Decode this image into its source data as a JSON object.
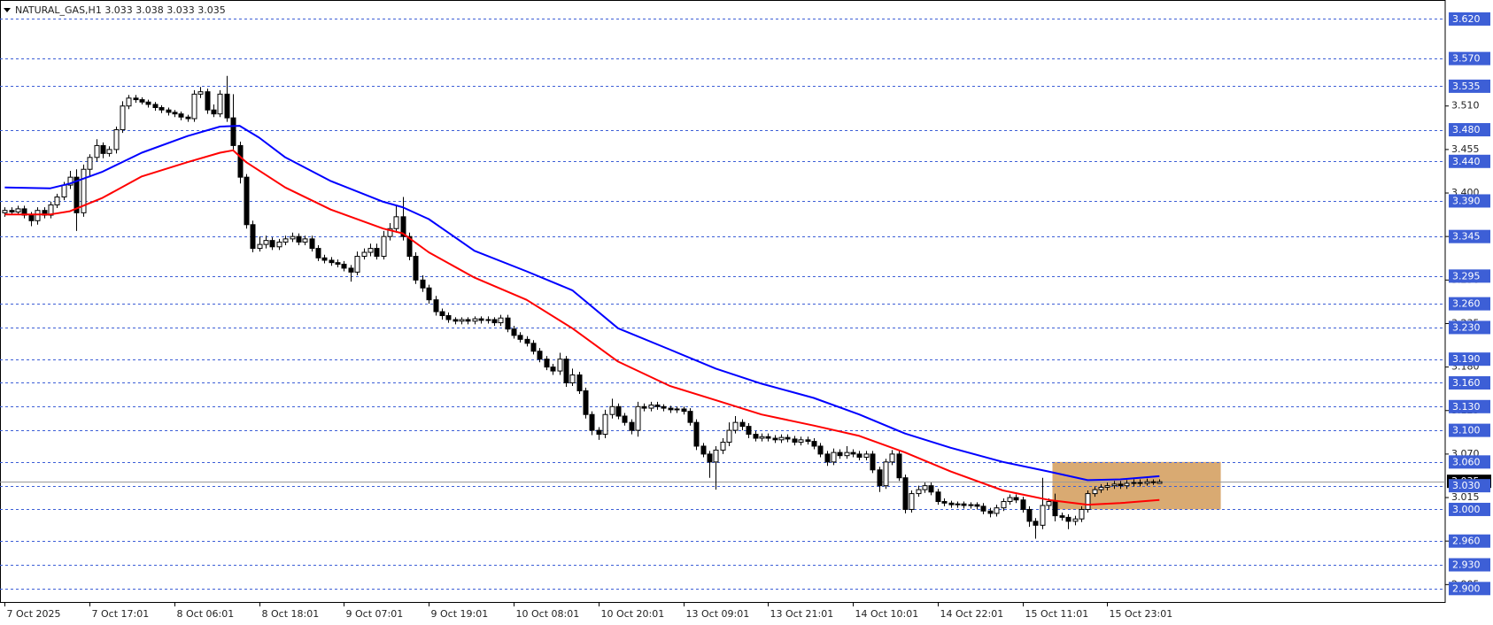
{
  "chart_data": {
    "type": "candlestick",
    "title": "NATURAL_GAS,H1  3.033 3.038 3.033 3.035",
    "open": [
      3.375,
      3.378,
      3.376,
      3.38,
      3.372,
      3.365,
      3.378,
      3.372,
      3.385,
      3.395,
      3.41,
      3.42,
      3.375,
      3.43,
      3.445,
      3.46,
      3.45,
      3.455,
      3.48,
      3.51,
      3.52,
      3.518,
      3.515,
      3.512,
      3.508,
      3.505,
      3.502,
      3.5,
      3.496,
      3.494,
      3.525,
      3.528,
      3.505,
      3.5,
      3.525,
      3.495,
      3.46,
      3.42,
      3.36,
      3.33,
      3.335,
      3.34,
      3.332,
      3.338,
      3.342,
      3.345,
      3.338,
      3.342,
      3.33,
      3.318,
      3.315,
      3.312,
      3.31,
      3.305,
      3.3,
      3.32,
      3.325,
      3.33,
      3.32,
      3.345,
      3.355,
      3.37,
      3.345,
      3.32,
      3.29,
      3.28,
      3.265,
      3.25,
      3.245,
      3.24,
      3.238,
      3.24,
      3.238,
      3.241,
      3.239,
      3.24,
      3.236,
      3.242,
      3.228,
      3.22,
      3.215,
      3.21,
      3.2,
      3.19,
      3.18,
      3.175,
      3.19,
      3.16,
      3.17,
      3.15,
      3.12,
      3.1,
      3.095,
      3.12,
      3.13,
      3.118,
      3.11,
      3.1,
      3.13,
      3.128,
      3.132,
      3.13,
      3.128,
      3.126,
      3.127,
      3.124,
      3.11,
      3.08,
      3.07,
      3.06,
      3.075,
      3.085,
      3.1,
      3.11,
      3.105,
      3.095,
      3.09,
      3.092,
      3.09,
      3.088,
      3.091,
      3.089,
      3.085,
      3.088,
      3.086,
      3.08,
      3.07,
      3.06,
      3.072,
      3.068,
      3.072,
      3.07,
      3.066,
      3.07,
      3.05,
      3.03,
      3.06,
      3.07,
      3.04,
      3.0,
      3.02,
      3.025,
      3.03,
      3.022,
      3.01,
      3.008,
      3.006,
      3.007,
      3.005,
      3.006,
      3.004,
      2.998,
      2.995,
      3.002,
      3.01,
      3.015,
      3.012,
      3.0,
      2.985,
      2.98,
      3.005,
      3.01,
      2.992,
      2.99,
      2.985,
      2.988,
      3.0,
      3.02,
      3.025,
      3.028,
      3.03,
      3.032,
      3.03,
      3.033,
      3.034,
      3.033,
      3.035,
      3.033
    ],
    "high": [
      3.382,
      3.382,
      3.384,
      3.384,
      3.376,
      3.382,
      3.382,
      3.389,
      3.399,
      3.414,
      3.428,
      3.43,
      3.436,
      3.449,
      3.468,
      3.464,
      3.459,
      3.484,
      3.516,
      3.524,
      3.524,
      3.521,
      3.518,
      3.515,
      3.511,
      3.508,
      3.505,
      3.503,
      3.499,
      3.53,
      3.534,
      3.532,
      3.512,
      3.53,
      3.548,
      3.525,
      3.465,
      3.424,
      3.365,
      3.345,
      3.346,
      3.344,
      3.342,
      3.346,
      3.35,
      3.349,
      3.346,
      3.346,
      3.334,
      3.322,
      3.319,
      3.316,
      3.314,
      3.309,
      3.326,
      3.33,
      3.336,
      3.336,
      3.352,
      3.362,
      3.385,
      3.395,
      3.35,
      3.325,
      3.296,
      3.284,
      3.27,
      3.254,
      3.249,
      3.243,
      3.243,
      3.243,
      3.244,
      3.244,
      3.244,
      3.243,
      3.246,
      3.246,
      3.232,
      3.224,
      3.219,
      3.214,
      3.204,
      3.194,
      3.184,
      3.198,
      3.194,
      3.178,
      3.174,
      3.154,
      3.124,
      3.104,
      3.126,
      3.14,
      3.134,
      3.122,
      3.114,
      3.136,
      3.134,
      3.136,
      3.136,
      3.133,
      3.131,
      3.13,
      3.13,
      3.128,
      3.114,
      3.084,
      3.074,
      3.08,
      3.09,
      3.11,
      3.118,
      3.114,
      3.109,
      3.099,
      3.096,
      3.096,
      3.094,
      3.095,
      3.095,
      3.093,
      3.092,
      3.092,
      3.09,
      3.084,
      3.074,
      3.077,
      3.076,
      3.08,
      3.076,
      3.074,
      3.074,
      3.074,
      3.054,
      3.064,
      3.075,
      3.074,
      3.044,
      3.024,
      3.03,
      3.034,
      3.034,
      3.026,
      3.014,
      3.011,
      3.01,
      3.01,
      3.009,
      3.009,
      3.008,
      3.002,
      3.006,
      3.014,
      3.019,
      3.019,
      3.016,
      3.004,
      2.989,
      3.04,
      3.014,
      3.02,
      2.996,
      2.994,
      2.992,
      3.004,
      3.024,
      3.029,
      3.032,
      3.034,
      3.036,
      3.036,
      3.037,
      3.038,
      3.038,
      3.039,
      3.038,
      3.038
    ],
    "low": [
      3.37,
      3.372,
      3.372,
      3.368,
      3.358,
      3.36,
      3.368,
      3.368,
      3.381,
      3.391,
      3.405,
      3.352,
      3.37,
      3.42,
      3.44,
      3.444,
      3.446,
      3.45,
      3.476,
      3.506,
      3.514,
      3.512,
      3.508,
      3.504,
      3.501,
      3.498,
      3.496,
      3.492,
      3.49,
      3.49,
      3.52,
      3.5,
      3.496,
      3.496,
      3.49,
      3.455,
      3.412,
      3.355,
      3.325,
      3.326,
      3.33,
      3.328,
      3.328,
      3.334,
      3.338,
      3.334,
      3.334,
      3.326,
      3.314,
      3.311,
      3.308,
      3.306,
      3.301,
      3.288,
      3.296,
      3.316,
      3.32,
      3.316,
      3.316,
      3.34,
      3.35,
      3.34,
      3.315,
      3.285,
      3.275,
      3.26,
      3.245,
      3.24,
      3.236,
      3.234,
      3.234,
      3.234,
      3.234,
      3.235,
      3.235,
      3.232,
      3.232,
      3.224,
      3.216,
      3.211,
      3.206,
      3.196,
      3.186,
      3.176,
      3.17,
      3.17,
      3.155,
      3.156,
      3.146,
      3.115,
      3.094,
      3.088,
      3.09,
      3.115,
      3.114,
      3.106,
      3.095,
      3.092,
      3.124,
      3.124,
      3.126,
      3.124,
      3.122,
      3.122,
      3.12,
      3.106,
      3.075,
      3.066,
      3.04,
      3.025,
      3.07,
      3.08,
      3.096,
      3.1,
      3.09,
      3.086,
      3.086,
      3.086,
      3.084,
      3.084,
      3.085,
      3.081,
      3.081,
      3.082,
      3.076,
      3.066,
      3.055,
      3.056,
      3.064,
      3.064,
      3.066,
      3.062,
      3.062,
      3.046,
      3.022,
      3.026,
      3.056,
      3.036,
      2.995,
      2.996,
      3.016,
      3.021,
      3.018,
      3.006,
      3.004,
      3.002,
      3.002,
      3.001,
      3.001,
      3.0,
      2.994,
      2.99,
      2.991,
      2.998,
      3.006,
      3.008,
      2.996,
      2.978,
      2.963,
      2.975,
      3.0,
      2.985,
      2.986,
      2.975,
      2.98,
      2.984,
      2.996,
      3.016,
      3.021,
      3.024,
      3.026,
      3.026,
      3.026,
      3.029,
      3.029,
      3.03,
      3.031,
      3.033
    ],
    "close": [
      3.378,
      3.376,
      3.38,
      3.372,
      3.365,
      3.378,
      3.372,
      3.385,
      3.395,
      3.41,
      3.42,
      3.375,
      3.43,
      3.445,
      3.46,
      3.45,
      3.455,
      3.48,
      3.51,
      3.52,
      3.518,
      3.515,
      3.512,
      3.508,
      3.505,
      3.502,
      3.5,
      3.496,
      3.494,
      3.525,
      3.528,
      3.505,
      3.5,
      3.525,
      3.495,
      3.46,
      3.42,
      3.36,
      3.33,
      3.335,
      3.34,
      3.332,
      3.338,
      3.342,
      3.345,
      3.338,
      3.342,
      3.33,
      3.318,
      3.315,
      3.312,
      3.31,
      3.305,
      3.3,
      3.32,
      3.325,
      3.33,
      3.32,
      3.345,
      3.355,
      3.37,
      3.345,
      3.32,
      3.29,
      3.28,
      3.265,
      3.25,
      3.245,
      3.24,
      3.238,
      3.24,
      3.238,
      3.241,
      3.239,
      3.24,
      3.236,
      3.242,
      3.228,
      3.22,
      3.215,
      3.21,
      3.2,
      3.19,
      3.18,
      3.175,
      3.19,
      3.16,
      3.17,
      3.15,
      3.12,
      3.1,
      3.095,
      3.12,
      3.13,
      3.118,
      3.11,
      3.1,
      3.13,
      3.128,
      3.132,
      3.13,
      3.128,
      3.126,
      3.127,
      3.124,
      3.11,
      3.08,
      3.07,
      3.06,
      3.075,
      3.085,
      3.1,
      3.11,
      3.105,
      3.095,
      3.09,
      3.092,
      3.09,
      3.088,
      3.091,
      3.089,
      3.085,
      3.088,
      3.086,
      3.08,
      3.07,
      3.06,
      3.072,
      3.068,
      3.072,
      3.07,
      3.066,
      3.07,
      3.05,
      3.03,
      3.06,
      3.07,
      3.04,
      3.0,
      3.02,
      3.025,
      3.03,
      3.022,
      3.01,
      3.008,
      3.006,
      3.007,
      3.005,
      3.006,
      3.004,
      2.998,
      2.995,
      3.002,
      3.01,
      3.015,
      3.012,
      3.0,
      2.985,
      2.98,
      3.005,
      3.01,
      2.992,
      2.99,
      2.985,
      2.988,
      3.0,
      3.02,
      3.025,
      3.028,
      3.03,
      3.032,
      3.03,
      3.033,
      3.034,
      3.033,
      3.035,
      3.034,
      3.035
    ],
    "bull_color": "#ffffff",
    "bear_color": "#000000",
    "moving_averages": [
      {
        "color": "#0000ff",
        "x": [
          0,
          7,
          10,
          15,
          21,
          28,
          33,
          36,
          39,
          43,
          50,
          58,
          61,
          65,
          72,
          80,
          87,
          94,
          102,
          109,
          116,
          124,
          131,
          138,
          145,
          153,
          160,
          166,
          171,
          177
        ],
        "values": [
          3.407,
          3.406,
          3.412,
          3.427,
          3.451,
          3.472,
          3.484,
          3.485,
          3.47,
          3.445,
          3.415,
          3.389,
          3.382,
          3.367,
          3.327,
          3.301,
          3.277,
          3.229,
          3.202,
          3.178,
          3.159,
          3.141,
          3.12,
          3.096,
          3.078,
          3.06,
          3.048,
          3.037,
          3.038,
          3.042
        ]
      },
      {
        "color": "#ff0000",
        "x": [
          0,
          7,
          10,
          15,
          21,
          28,
          33,
          35,
          37,
          43,
          50,
          58,
          61,
          65,
          72,
          80,
          87,
          94,
          102,
          109,
          116,
          124,
          131,
          138,
          145,
          153,
          160,
          166,
          171,
          177
        ],
        "values": [
          3.373,
          3.373,
          3.377,
          3.394,
          3.421,
          3.439,
          3.451,
          3.454,
          3.439,
          3.407,
          3.379,
          3.355,
          3.349,
          3.325,
          3.293,
          3.265,
          3.229,
          3.187,
          3.156,
          3.138,
          3.12,
          3.106,
          3.093,
          3.072,
          3.048,
          3.024,
          3.012,
          3.006,
          3.008,
          3.012
        ]
      }
    ],
    "zone": {
      "color": "#d9aa72",
      "x": [
        160.6,
        186.4
      ],
      "y": [
        3.0,
        3.06
      ]
    },
    "xlim": [
      -0.73,
      220.8
    ],
    "ylim": [
      2.883,
      3.644
    ],
    "yticks": [
      {
        "value": 3.51,
        "label": "3.510"
      },
      3.455,
      {
        "value": 3.4,
        "label": "3.400"
      },
      3.345,
      {
        "value": 3.29,
        "label": "3.290"
      },
      3.235,
      {
        "value": 3.18,
        "label": "3.180"
      },
      3.125,
      {
        "value": 3.07,
        "label": "3.070"
      },
      3.015,
      {
        "value": 2.96,
        "label": "2.960"
      },
      2.905
    ],
    "xticks": [
      {
        "value": 0,
        "label": "7 Oct 2025"
      },
      {
        "value": 13,
        "label": "7 Oct 17:01"
      },
      {
        "value": 26,
        "label": "8 Oct 06:01"
      },
      {
        "value": 39,
        "label": "8 Oct 18:01"
      },
      {
        "value": 52,
        "label": "9 Oct 07:01"
      },
      {
        "value": 65,
        "label": "9 Oct 19:01"
      },
      {
        "value": 78,
        "label": "10 Oct 08:01"
      },
      {
        "value": 91,
        "label": "10 Oct 20:01"
      },
      {
        "value": 104,
        "label": "13 Oct 09:01"
      },
      {
        "value": 117,
        "label": "13 Oct 21:01"
      },
      {
        "value": 130,
        "label": "14 Oct 10:01"
      },
      {
        "value": 143,
        "label": "14 Oct 22:01"
      },
      {
        "value": 156,
        "label": "15 Oct 11:01"
      },
      {
        "value": 169,
        "label": "15 Oct 23:01"
      }
    ],
    "current_price": 3.035,
    "levels": {
      "color": "#3d5fd6",
      "values": [
        {
          "value": 3.62,
          "label": "3.620"
        },
        {
          "value": 3.57,
          "label": "3.570"
        },
        3.535,
        {
          "value": 3.48,
          "label": "3.480"
        },
        {
          "value": 3.44,
          "label": "3.440"
        },
        {
          "value": 3.39,
          "label": "3.390"
        },
        3.345,
        3.295,
        {
          "value": 3.26,
          "label": "3.260"
        },
        {
          "value": 3.23,
          "label": "3.230"
        },
        {
          "value": 3.19,
          "label": "3.190"
        },
        {
          "value": 3.16,
          "label": "3.160"
        },
        {
          "value": 3.13,
          "label": "3.130"
        },
        {
          "value": 3.1,
          "label": "3.100"
        },
        {
          "value": 3.06,
          "label": "3.060"
        },
        {
          "value": 3.03,
          "label": "3.030"
        },
        {
          "value": 3.0,
          "label": "3.000"
        },
        {
          "value": 2.96,
          "label": "2.960"
        },
        {
          "value": 2.93,
          "label": "2.930"
        },
        {
          "value": 2.9,
          "label": "2.900"
        }
      ]
    }
  }
}
